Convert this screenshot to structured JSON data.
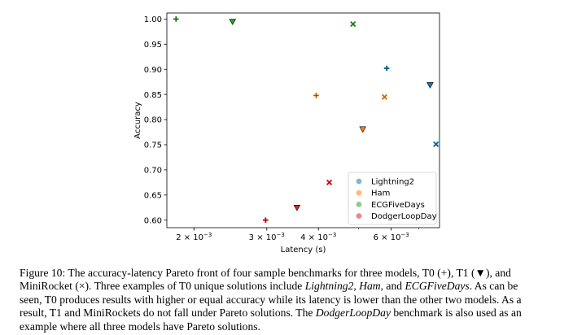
{
  "chart_data": {
    "type": "scatter",
    "title": "",
    "xlabel": "Latency (s)",
    "ylabel": "Accuracy",
    "xscale": "log",
    "xlim": [
      0.00172,
      0.00785
    ],
    "ylim": [
      0.585,
      1.012
    ],
    "x_ticks": [
      {
        "value": 0.002,
        "mantissa": "2",
        "exponent": "−3"
      },
      {
        "value": 0.003,
        "mantissa": "3",
        "exponent": "−3"
      },
      {
        "value": 0.004,
        "mantissa": "4",
        "exponent": "−3"
      },
      {
        "value": 0.006,
        "mantissa": "6",
        "exponent": "−3"
      }
    ],
    "times_sign": "×",
    "base": "10",
    "y_ticks": [
      "0.60",
      "0.65",
      "0.70",
      "0.75",
      "0.80",
      "0.85",
      "0.90",
      "0.95",
      "1.00"
    ],
    "marker_legend": {
      "T0": "plus",
      "T1": "triangle-down",
      "MiniRocket": "x"
    },
    "legend_position": "lower-right",
    "series": [
      {
        "name": "Lightning2",
        "color": "#1f77b4",
        "points": [
          {
            "model": "T0",
            "x": 0.00585,
            "y": 0.902
          },
          {
            "model": "T1",
            "x": 0.00745,
            "y": 0.869
          },
          {
            "model": "MiniRocket",
            "x": 0.0077,
            "y": 0.751
          }
        ]
      },
      {
        "name": "Ham",
        "color": "#ff7f0e",
        "points": [
          {
            "model": "T0",
            "x": 0.00395,
            "y": 0.848
          },
          {
            "model": "T1",
            "x": 0.00512,
            "y": 0.781
          },
          {
            "model": "MiniRocket",
            "x": 0.00578,
            "y": 0.845
          }
        ]
      },
      {
        "name": "ECGFiveDays",
        "color": "#2ca02c",
        "points": [
          {
            "model": "T0",
            "x": 0.00181,
            "y": 1.0
          },
          {
            "model": "T1",
            "x": 0.00248,
            "y": 0.995
          },
          {
            "model": "MiniRocket",
            "x": 0.00485,
            "y": 0.99
          }
        ]
      },
      {
        "name": "DodgerLoopDay",
        "color": "#d62728",
        "points": [
          {
            "model": "T0",
            "x": 0.00298,
            "y": 0.6
          },
          {
            "model": "T1",
            "x": 0.00355,
            "y": 0.625
          },
          {
            "model": "MiniRocket",
            "x": 0.00425,
            "y": 0.675
          }
        ]
      }
    ]
  },
  "caption": {
    "line1": "Figure 10: The accuracy-latency Pareto front of four sample benchmarks for three models, T0 (+), T1 (▼), and",
    "line2_a": "MiniRocket (×).  Three examples of T0 unique solutions include ",
    "line2_i1": "Lightning2",
    "line2_b": ", ",
    "line2_i2": "Ham",
    "line2_c": ", and ",
    "line2_i3": "ECGFiveDays",
    "line2_d": ".  As can be",
    "line3": "seen, T0 produces results with higher or equal accuracy while its latency is lower than the other two models.  As a",
    "line4": "result, T1 and MiniRockets do not fall under Pareto solutions.  The ",
    "line4_i": "DodgerLoopDay",
    "line4_b": " benchmark is also used as an",
    "line5": "example where all three models have Pareto solutions."
  }
}
